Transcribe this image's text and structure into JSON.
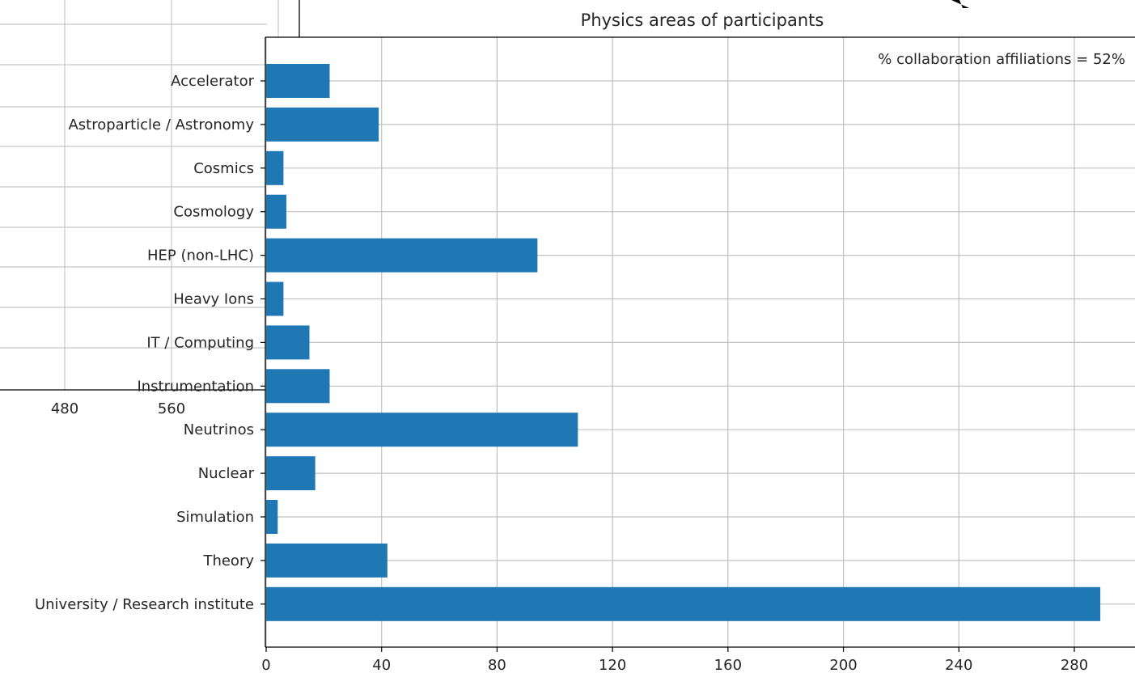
{
  "background_chart": {
    "x_ticks": [
      "480",
      "560"
    ]
  },
  "chart_data": {
    "type": "bar",
    "orientation": "horizontal",
    "title": "Physics areas of participants",
    "annotation": "% collaboration affiliations = 52%",
    "annotation_position": "top-right",
    "categories": [
      "Accelerator",
      "Astroparticle / Astronomy",
      "Cosmics",
      "Cosmology",
      "HEP (non-LHC)",
      "Heavy Ions",
      "IT / Computing",
      "Instrumentation",
      "Neutrinos",
      "Nuclear",
      "Simulation",
      "Theory",
      "University / Research institute"
    ],
    "values": [
      22,
      39,
      6,
      7,
      94,
      6,
      15,
      22,
      108,
      17,
      4,
      42,
      289
    ],
    "x_ticks": [
      0,
      40,
      80,
      120,
      160,
      200,
      240,
      280
    ],
    "xlim": [
      0,
      300
    ],
    "grid": true,
    "bar_color": "#1f77b4",
    "xlabel": "",
    "ylabel": ""
  }
}
